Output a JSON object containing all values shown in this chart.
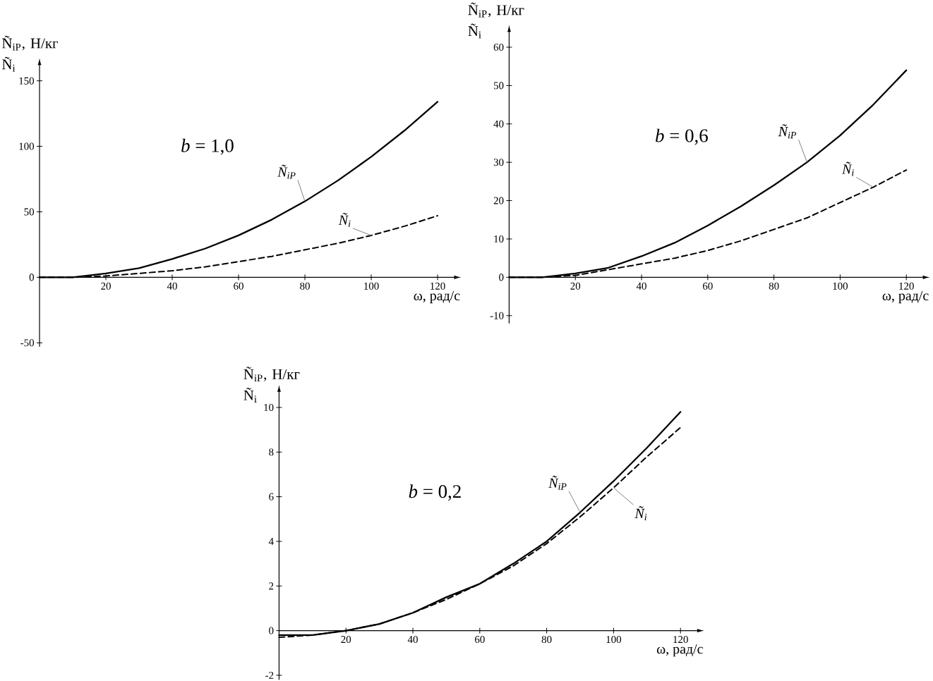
{
  "chart_data": [
    {
      "type": "line",
      "ylabel": "Ñ$_{iP}$, Н/кг Ñ$_{i}$",
      "xlabel": "ω, рад/с",
      "annotations": [
        "*b* = 1,0"
      ],
      "x": [
        0,
        10,
        20,
        30,
        40,
        50,
        60,
        70,
        80,
        90,
        100,
        110,
        120
      ],
      "xlim": [
        0,
        125
      ],
      "ylim": [
        -53,
        162
      ],
      "xticks": [
        20,
        40,
        60,
        80,
        100,
        120
      ],
      "yticks": [
        -50,
        0,
        50,
        100,
        150
      ],
      "series": [
        {
          "name": "Ñ$_{iP}$",
          "color": "#000000",
          "line_style": "solid",
          "values": [
            0,
            0,
            3,
            7,
            14,
            22,
            32,
            44,
            58,
            74,
            92,
            112,
            134
          ]
        },
        {
          "name": "Ñ$_{i}$",
          "color": "#000000",
          "line_style": "dashed",
          "values": [
            0,
            0,
            1,
            3,
            5,
            8,
            12,
            16,
            21,
            26,
            32,
            39,
            47
          ]
        }
      ]
    },
    {
      "type": "line",
      "ylabel": "Ñ$_{iP}$, Н/кг Ñ$_{i}$",
      "xlabel": "ω, рад/с",
      "annotations": [
        "*b* = 0,6"
      ],
      "x": [
        0,
        10,
        20,
        30,
        40,
        50,
        60,
        70,
        80,
        90,
        100,
        110,
        120
      ],
      "xlim": [
        0,
        125
      ],
      "ylim": [
        -12,
        64
      ],
      "xticks": [
        20,
        40,
        60,
        80,
        100,
        120
      ],
      "yticks": [
        -10,
        0,
        10,
        20,
        30,
        40,
        50,
        60
      ],
      "series": [
        {
          "name": "Ñ$_{iP}$",
          "color": "#000000",
          "line_style": "solid",
          "values": [
            0,
            0,
            1,
            2.5,
            5.5,
            9,
            13.5,
            18.5,
            24,
            30,
            37,
            45,
            54
          ]
        },
        {
          "name": "Ñ$_{i}$",
          "color": "#000000",
          "line_style": "dashed",
          "values": [
            0,
            0,
            0.5,
            2,
            3.5,
            5,
            7,
            9.5,
            12.5,
            15.5,
            19.5,
            23.5,
            28
          ]
        }
      ]
    },
    {
      "type": "line",
      "ylabel": "Ñ$_{iP}$, Н/кг Ñ$_{i}$",
      "xlabel": "ω, рад/с",
      "annotations": [
        "*b* = 0,2"
      ],
      "x": [
        0,
        10,
        20,
        30,
        40,
        50,
        60,
        70,
        80,
        90,
        100,
        110,
        120
      ],
      "xlim": [
        0,
        125
      ],
      "ylim": [
        -2.2,
        10.7
      ],
      "xticks": [
        20,
        40,
        60,
        80,
        100,
        120
      ],
      "yticks": [
        -2,
        0,
        2,
        4,
        6,
        8,
        10
      ],
      "series": [
        {
          "name": "Ñ$_{iP}$",
          "color": "#000000",
          "line_style": "solid",
          "values": [
            -0.2,
            -0.2,
            0,
            0.3,
            0.8,
            1.5,
            2.1,
            3.0,
            4.0,
            5.3,
            6.7,
            8.2,
            9.8
          ]
        },
        {
          "name": "Ñ$_{i}$",
          "color": "#000000",
          "line_style": "dashed",
          "values": [
            -0.3,
            -0.2,
            0,
            0.3,
            0.8,
            1.4,
            2.1,
            2.9,
            3.9,
            5.1,
            6.4,
            7.8,
            9.1
          ]
        }
      ]
    }
  ]
}
